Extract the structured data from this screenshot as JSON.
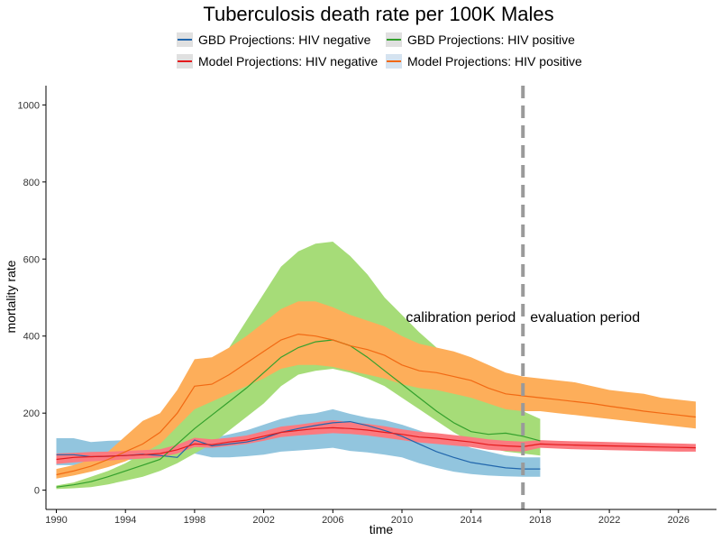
{
  "chart_data": {
    "type": "line",
    "title": "Tuberculosis death rate per 100K Males",
    "xlabel": "time",
    "ylabel": "mortality rate",
    "xlim": [
      1989.4,
      2028.2
    ],
    "ylim": [
      -50,
      1050
    ],
    "x_ticks": [
      1990,
      1994,
      1998,
      2002,
      2006,
      2010,
      2014,
      2018,
      2022,
      2026
    ],
    "y_ticks": [
      0,
      200,
      400,
      600,
      800,
      1000
    ],
    "grid": false,
    "legend_position": "top",
    "annotations": {
      "calibration_label": "calibration period",
      "evaluation_label": "evaluation period",
      "divider_x": 2017
    },
    "series": [
      {
        "name": "GBD Projections: HIV negative",
        "color": "#2166ac",
        "band_color": "#92c5de",
        "x": [
          1990,
          1991,
          1992,
          1993,
          1994,
          1995,
          1996,
          1997,
          1998,
          1999,
          2000,
          2001,
          2002,
          2003,
          2004,
          2005,
          2006,
          2007,
          2008,
          2009,
          2010,
          2011,
          2012,
          2013,
          2014,
          2015,
          2016,
          2017,
          2018
        ],
        "values": [
          92,
          92,
          87,
          88,
          90,
          93,
          90,
          85,
          130,
          115,
          120,
          125,
          135,
          150,
          160,
          168,
          175,
          178,
          168,
          155,
          140,
          120,
          100,
          85,
          72,
          65,
          58,
          55,
          55
        ],
        "lower": [
          65,
          65,
          72,
          75,
          78,
          80,
          82,
          80,
          95,
          85,
          85,
          88,
          92,
          100,
          103,
          106,
          110,
          102,
          98,
          92,
          85,
          70,
          58,
          48,
          42,
          38,
          36,
          35,
          35
        ],
        "upper": [
          135,
          135,
          125,
          128,
          130,
          132,
          128,
          122,
          140,
          135,
          145,
          155,
          170,
          185,
          195,
          200,
          210,
          198,
          188,
          182,
          170,
          155,
          140,
          125,
          110,
          100,
          90,
          85,
          85
        ]
      },
      {
        "name": "GBD Projections: HIV positive",
        "color": "#33a02c",
        "band_color": "#a6dc78",
        "x": [
          1990,
          1991,
          1992,
          1993,
          1994,
          1995,
          1996,
          1997,
          1998,
          1999,
          2000,
          2001,
          2002,
          2003,
          2004,
          2005,
          2006,
          2007,
          2008,
          2009,
          2010,
          2011,
          2012,
          2013,
          2014,
          2015,
          2016,
          2017,
          2018
        ],
        "values": [
          8,
          14,
          22,
          35,
          50,
          65,
          80,
          120,
          160,
          195,
          230,
          265,
          305,
          345,
          370,
          385,
          390,
          375,
          345,
          310,
          275,
          240,
          205,
          175,
          152,
          145,
          148,
          140,
          128
        ],
        "lower": [
          3,
          5,
          8,
          15,
          25,
          35,
          50,
          70,
          95,
          120,
          155,
          190,
          225,
          270,
          300,
          310,
          315,
          305,
          290,
          270,
          240,
          210,
          180,
          150,
          125,
          110,
          100,
          95,
          90
        ],
        "upper": [
          12,
          20,
          35,
          50,
          70,
          95,
          120,
          200,
          260,
          320,
          370,
          440,
          510,
          580,
          620,
          640,
          645,
          608,
          560,
          500,
          455,
          410,
          370,
          330,
          290,
          255,
          225,
          205,
          185
        ]
      },
      {
        "name": "Model Projections: HIV negative",
        "color": "#e41a1c",
        "band_color": "#fb7a80",
        "x": [
          1990,
          1991,
          1992,
          1993,
          1994,
          1995,
          1996,
          1997,
          1998,
          1999,
          2000,
          2001,
          2002,
          2003,
          2004,
          2005,
          2006,
          2007,
          2008,
          2009,
          2010,
          2011,
          2012,
          2013,
          2014,
          2015,
          2016,
          2017,
          2018,
          2019,
          2020,
          2021,
          2022,
          2023,
          2024,
          2025,
          2026,
          2027
        ],
        "values": [
          80,
          85,
          87,
          88,
          90,
          92,
          95,
          105,
          120,
          118,
          125,
          130,
          140,
          150,
          155,
          160,
          162,
          160,
          156,
          150,
          145,
          138,
          135,
          130,
          125,
          118,
          115,
          113,
          120,
          118,
          117,
          116,
          115,
          114,
          113,
          112,
          111,
          110
        ],
        "lower": [
          68,
          72,
          75,
          77,
          80,
          82,
          85,
          95,
          112,
          110,
          115,
          120,
          128,
          138,
          142,
          145,
          148,
          146,
          142,
          136,
          130,
          124,
          120,
          116,
          112,
          105,
          102,
          100,
          110,
          108,
          106,
          105,
          104,
          103,
          102,
          101,
          100,
          100
        ],
        "upper": [
          95,
          97,
          99,
          100,
          102,
          104,
          106,
          118,
          136,
          132,
          136,
          142,
          153,
          165,
          170,
          176,
          182,
          176,
          172,
          166,
          158,
          152,
          148,
          143,
          138,
          132,
          128,
          126,
          130,
          128,
          127,
          126,
          125,
          124,
          123,
          122,
          121,
          120
        ]
      },
      {
        "name": "Model Projections: HIV positive",
        "color": "#f16913",
        "band_color": "#fdae5a",
        "x": [
          1990,
          1991,
          1992,
          1993,
          1994,
          1995,
          1996,
          1997,
          1998,
          1999,
          2000,
          2001,
          2002,
          2003,
          2004,
          2005,
          2006,
          2007,
          2008,
          2009,
          2010,
          2011,
          2012,
          2013,
          2014,
          2015,
          2016,
          2017,
          2018,
          2019,
          2020,
          2021,
          2022,
          2023,
          2024,
          2025,
          2026,
          2027
        ],
        "values": [
          40,
          50,
          62,
          80,
          100,
          120,
          150,
          200,
          270,
          275,
          300,
          330,
          360,
          390,
          405,
          400,
          390,
          375,
          365,
          350,
          325,
          310,
          305,
          295,
          285,
          265,
          250,
          245,
          240,
          235,
          230,
          225,
          218,
          212,
          205,
          200,
          195,
          190
        ],
        "lower": [
          30,
          38,
          48,
          60,
          75,
          95,
          120,
          165,
          210,
          230,
          250,
          270,
          290,
          315,
          325,
          325,
          320,
          310,
          300,
          290,
          275,
          265,
          260,
          250,
          240,
          225,
          210,
          205,
          205,
          200,
          195,
          190,
          185,
          180,
          175,
          170,
          165,
          160
        ],
        "upper": [
          55,
          65,
          80,
          100,
          140,
          180,
          200,
          260,
          340,
          345,
          370,
          400,
          435,
          470,
          490,
          490,
          475,
          455,
          440,
          425,
          400,
          380,
          370,
          360,
          345,
          325,
          305,
          295,
          290,
          285,
          280,
          270,
          260,
          255,
          250,
          240,
          235,
          230
        ]
      }
    ]
  }
}
